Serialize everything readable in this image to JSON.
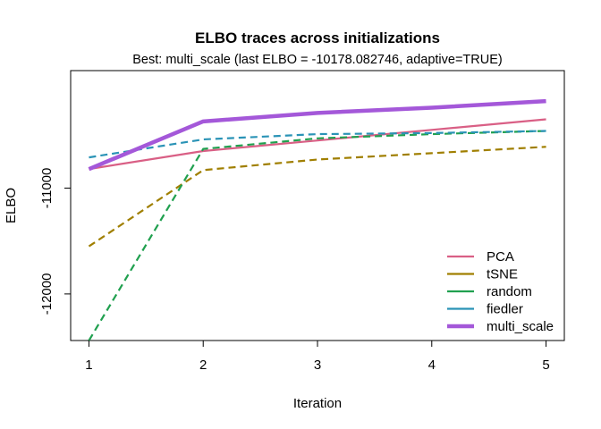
{
  "chart_data": {
    "type": "line",
    "title": "ELBO traces across initializations",
    "subtitle": "Best: multi_scale (last ELBO = -10178.082746, adaptive=TRUE)",
    "xlabel": "Iteration",
    "ylabel": "ELBO",
    "x": [
      1,
      2,
      3,
      4,
      5
    ],
    "xlim": [
      0.84,
      5.16
    ],
    "ylim": [
      -12440,
      -9890
    ],
    "xticks": [
      1,
      2,
      3,
      4,
      5
    ],
    "yticks": [
      -12000,
      -11000
    ],
    "legend_position": "bottom-right",
    "series": [
      {
        "name": "PCA",
        "color": "#d95f85",
        "dash": "solid",
        "width": "normal",
        "values": [
          -10820,
          -10650,
          -10550,
          -10450,
          -10350
        ]
      },
      {
        "name": "tSNE",
        "color": "#a07f00",
        "dash": "dashed",
        "width": "normal",
        "values": [
          -11550,
          -10830,
          -10730,
          -10670,
          -10610
        ]
      },
      {
        "name": "random",
        "color": "#20a04f",
        "dash": "dashed",
        "width": "normal",
        "values": [
          -12440,
          -10630,
          -10530,
          -10490,
          -10460
        ]
      },
      {
        "name": "fiedler",
        "color": "#2a93b6",
        "dash": "dashed",
        "width": "normal",
        "values": [
          -10710,
          -10540,
          -10490,
          -10480,
          -10460
        ]
      },
      {
        "name": "multi_scale",
        "color": "#a458d9",
        "dash": "solid",
        "width": "thick",
        "values": [
          -10820,
          -10370,
          -10290,
          -10240,
          -10178.082746
        ]
      }
    ]
  }
}
